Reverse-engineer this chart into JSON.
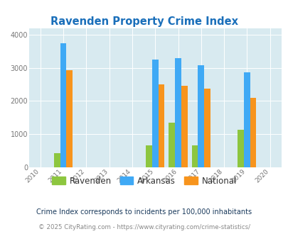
{
  "title": "Ravenden Property Crime Index",
  "years": [
    2011,
    2015,
    2016,
    2017,
    2019
  ],
  "ravenden": [
    430,
    670,
    1350,
    670,
    1140
  ],
  "arkansas": [
    3750,
    3250,
    3290,
    3080,
    2860
  ],
  "national": [
    2920,
    2510,
    2460,
    2380,
    2100
  ],
  "ravenden_color": "#8dc63f",
  "arkansas_color": "#3fa9f5",
  "national_color": "#f7941d",
  "bg_color": "#d8eaf0",
  "title_color": "#1a6fba",
  "tick_color": "#777777",
  "xlim": [
    2009.5,
    2020.5
  ],
  "ylim": [
    0,
    4200
  ],
  "yticks": [
    0,
    1000,
    2000,
    3000,
    4000
  ],
  "xticks": [
    2010,
    2011,
    2012,
    2013,
    2014,
    2015,
    2016,
    2017,
    2018,
    2019,
    2020
  ],
  "bar_width": 0.27,
  "footnote1": "Crime Index corresponds to incidents per 100,000 inhabitants",
  "footnote2": "© 2025 CityRating.com - https://www.cityrating.com/crime-statistics/",
  "legend_labels": [
    "Ravenden",
    "Arkansas",
    "National"
  ],
  "footnote1_color": "#1a3a5c",
  "footnote2_color": "#888888"
}
